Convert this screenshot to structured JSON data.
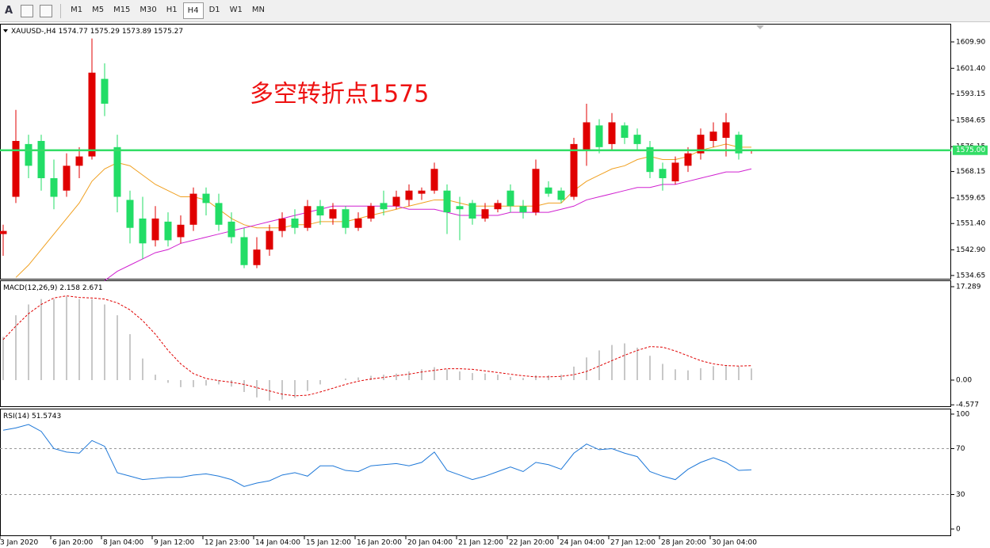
{
  "toolbar": {
    "tools": [
      "A"
    ],
    "timeframes": [
      "M1",
      "M5",
      "M15",
      "M30",
      "H1",
      "H4",
      "D1",
      "W1",
      "MN"
    ]
  },
  "chart_data": [
    {
      "type": "candlestick",
      "symbol": "XAUUSD-,H4",
      "annotation": "多空转折点1575",
      "categories": [
        "3 Jan 2020",
        null,
        null,
        null,
        "6 Jan 20:00",
        null,
        null,
        null,
        "8 Jan 04:00",
        null,
        null,
        null,
        "9 Jan 12:00",
        null,
        null,
        null,
        "12 Jan 23:00",
        null,
        null,
        null,
        "14 Jan 04:00",
        null,
        null,
        null,
        "15 Jan 12:00",
        null,
        null,
        null,
        "16 Jan 20:00",
        null,
        null,
        null,
        "20 Jan 04:00",
        null,
        null,
        null,
        "21 Jan 12:00",
        null,
        null,
        null,
        "22 Jan 20:00",
        null,
        null,
        null,
        "24 Jan 04:00",
        null,
        null,
        null,
        "27 Jan 12:00",
        null,
        null,
        null,
        "28 Jan 20:00",
        null,
        null,
        null,
        "30 Jan 04:00",
        null,
        null,
        null
      ],
      "open": [
        1548,
        1560,
        1577,
        1578,
        1566,
        1562,
        1570,
        1573,
        1598,
        1576,
        1559,
        1553,
        1546,
        1552,
        1547,
        1551,
        1561,
        1558,
        1552,
        1547,
        1538,
        1543,
        1549,
        1553,
        1550,
        1557,
        1553,
        1556,
        1550,
        1553,
        1558,
        1557,
        1559,
        1561,
        1562,
        1562,
        1557,
        1558,
        1553,
        1556,
        1562,
        1557,
        1555,
        1563,
        1562,
        1560,
        1575,
        1583,
        1577,
        1583,
        1580,
        1576,
        1569,
        1565,
        1570,
        1574,
        1578,
        1579,
        1580,
        1574.77
      ],
      "high": [
        1551,
        1588,
        1580,
        1580,
        1572,
        1574,
        1576,
        1611,
        1603,
        1580,
        1562,
        1560,
        1557,
        1555,
        1554,
        1563,
        1563,
        1561,
        1555,
        1550,
        1547,
        1551,
        1555,
        1556,
        1559,
        1559,
        1558,
        1557,
        1555,
        1558,
        1562,
        1562,
        1564,
        1563,
        1571,
        1564,
        1560,
        1559,
        1558,
        1559,
        1564,
        1559,
        1572,
        1565,
        1563,
        1579,
        1590,
        1585,
        1587,
        1584,
        1582,
        1578,
        1571,
        1573,
        1576,
        1582,
        1584,
        1587,
        1581,
        1575.29
      ],
      "low": [
        1541,
        1558,
        1566,
        1562,
        1556,
        1560,
        1566,
        1572,
        1586,
        1555,
        1545,
        1540,
        1544,
        1544,
        1545,
        1549,
        1554,
        1549,
        1545,
        1537,
        1537,
        1541,
        1547,
        1548,
        1549,
        1551,
        1551,
        1548,
        1549,
        1552,
        1554,
        1556,
        1557,
        1559,
        1561,
        1548,
        1546,
        1551,
        1552,
        1555,
        1555,
        1553,
        1554,
        1560,
        1558,
        1559,
        1570,
        1574,
        1575,
        1577,
        1575,
        1566,
        1562,
        1564,
        1568,
        1572,
        1576,
        1573,
        1572,
        1573.89
      ],
      "close": [
        1549,
        1578,
        1570,
        1566,
        1560,
        1570,
        1573,
        1600,
        1590,
        1560,
        1550,
        1545,
        1553,
        1546,
        1551,
        1561,
        1558,
        1551,
        1547,
        1538,
        1543,
        1549,
        1553,
        1550,
        1557,
        1554,
        1556,
        1550,
        1553,
        1557,
        1556,
        1560,
        1562,
        1562,
        1569,
        1555,
        1556,
        1553,
        1556,
        1558,
        1557,
        1555,
        1569,
        1561,
        1559,
        1577,
        1584,
        1576,
        1584,
        1579,
        1577,
        1568,
        1566,
        1571,
        1574,
        1580,
        1581,
        1584,
        1574,
        1575.27
      ],
      "up_color": "#e00000",
      "down_color": "#22dd66",
      "series": [
        {
          "color": "#f0a020",
          "values": [
            null,
            1534,
            1538,
            1543,
            1548,
            1553,
            1558,
            1565,
            1569,
            1571,
            1570,
            1567,
            1564,
            1562,
            1560,
            1560,
            1559,
            1556,
            1553,
            1551,
            1550,
            1550,
            1550,
            1551,
            1551,
            1552,
            1552,
            1552,
            1553,
            1554,
            1555,
            1556,
            1557,
            1558,
            1559,
            1559,
            1558,
            1557,
            1557,
            1557,
            1557,
            1557,
            1557,
            1558,
            1558,
            1562,
            1565,
            1567,
            1569,
            1570,
            1572,
            1573,
            1572,
            1572,
            1573,
            1575,
            1576,
            1577,
            1576,
            1576
          ]
        },
        {
          "color": "#d020d0",
          "values": [
            null,
            null,
            null,
            null,
            null,
            null,
            null,
            null,
            1533,
            1536,
            1538,
            1540,
            1542,
            1543,
            1545,
            1546,
            1547,
            1548,
            1549,
            1550,
            1551,
            1552,
            1553,
            1554,
            1555,
            1556,
            1557,
            1557,
            1557,
            1557,
            1557,
            1557,
            1556,
            1556,
            1556,
            1555,
            1554,
            1554,
            1554,
            1554,
            1555,
            1555,
            1555,
            1555,
            1556,
            1557,
            1559,
            1560,
            1561,
            1562,
            1563,
            1563,
            1564,
            1564,
            1565,
            1566,
            1567,
            1568,
            1568,
            1569
          ]
        }
      ],
      "hline": {
        "value": 1575,
        "label": "1575.00",
        "color": "#33dd66"
      },
      "ylim": [
        1533.6,
        1615.5
      ],
      "yticks": [
        {
          "value": 1609.9,
          "label": "1609.90"
        },
        {
          "value": 1601.4,
          "label": "1601.40"
        },
        {
          "value": 1593.15,
          "label": "1593.15"
        },
        {
          "value": 1584.65,
          "label": "1584.65"
        },
        {
          "value": 1576.15,
          "label": "1576.15"
        },
        {
          "value": 1568.15,
          "label": "1568.15"
        },
        {
          "value": 1559.65,
          "label": "1559.65"
        },
        {
          "value": 1551.4,
          "label": "1551.40"
        },
        {
          "value": 1542.9,
          "label": "1542.90"
        },
        {
          "value": 1534.65,
          "label": "1534.65"
        }
      ]
    },
    {
      "type": "macd",
      "title": "MACD(12,26,9)",
      "series": [
        {
          "color": "#c8c8c8",
          "values": [
            8,
            12,
            14,
            15,
            15,
            15.5,
            15,
            15,
            14,
            12,
            8.5,
            4,
            1,
            -0.5,
            -1.3,
            -1.3,
            -1,
            -0.8,
            -1.2,
            -2.2,
            -3.2,
            -3.8,
            -3.6,
            -3.3,
            -2,
            -0.8,
            0,
            0.3,
            0.5,
            0.8,
            1,
            1.2,
            1.6,
            2,
            2.4,
            2,
            1.6,
            1.3,
            1.2,
            1,
            0.6,
            0.4,
            0.9,
            0.9,
            1,
            2.5,
            4.2,
            5.5,
            6.5,
            6.8,
            6,
            4.5,
            3,
            2,
            1.8,
            2.2,
            2.6,
            2.8,
            2.5,
            2.158
          ]
        },
        {
          "color": "#e00000",
          "values": [
            7.5,
            10,
            12.3,
            14,
            15.2,
            15.6,
            15.3,
            15.2,
            15,
            14.3,
            13,
            11,
            8.5,
            5.5,
            3,
            1.2,
            0.3,
            -0.1,
            -0.4,
            -0.8,
            -1.4,
            -2,
            -2.6,
            -2.9,
            -2.8,
            -2.2,
            -1.5,
            -0.8,
            -0.2,
            0.2,
            0.5,
            0.8,
            1.1,
            1.5,
            1.8,
            2.1,
            2.1,
            2,
            1.7,
            1.4,
            1.1,
            0.8,
            0.6,
            0.6,
            0.7,
            1,
            1.6,
            2.6,
            3.6,
            4.6,
            5.5,
            6.2,
            6.1,
            5.4,
            4.5,
            3.6,
            3,
            2.7,
            2.6,
            2.671
          ]
        }
      ],
      "ylim": [
        -4.84,
        18.32
      ],
      "yticks": [
        17.289,
        {
          "value": 0,
          "label": "0.00"
        },
        -4.577
      ]
    },
    {
      "type": "line",
      "title": "RSI(14)",
      "series": [
        {
          "color": "#1e78d8",
          "values": [
            86,
            88,
            91,
            85,
            70,
            67,
            66,
            77,
            72,
            49,
            46,
            43,
            44,
            45,
            45,
            47,
            48,
            46,
            43,
            37,
            40,
            42,
            47,
            49,
            46,
            55,
            55,
            51,
            50,
            55,
            56,
            57,
            55,
            58,
            67,
            51,
            47,
            43,
            46,
            50,
            54,
            50,
            58,
            56,
            52,
            66,
            74,
            69,
            70,
            66,
            63,
            50,
            46,
            43,
            52,
            58,
            62,
            58,
            51,
            51.5743
          ]
        }
      ],
      "levels": [
        70,
        30
      ],
      "ylim": [
        -5.5,
        104.1
      ],
      "yticks": [
        100,
        70,
        30,
        0
      ]
    }
  ]
}
